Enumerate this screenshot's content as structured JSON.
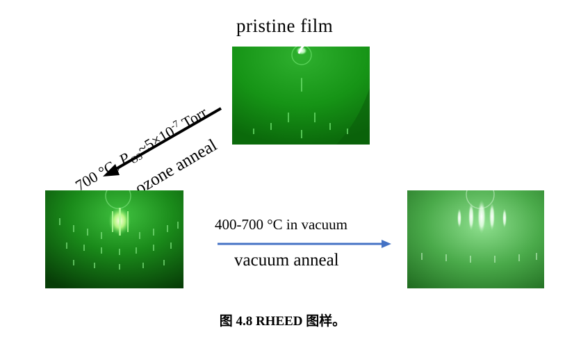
{
  "figure": {
    "pristine_label": "pristine film",
    "ozone_condition": {
      "prefix": "700 °C, ",
      "p": "P",
      "sub": "O3",
      "mid": "~5×10",
      "sup": "-7",
      "suffix": " Torr"
    },
    "ozone_anneal_label": "ozone anneal",
    "vacuum_condition": "400-700 °C in vacuum",
    "vacuum_anneal_label": "vacuum anneal"
  },
  "caption": {
    "prefix": "图 ",
    "number": "4.8",
    "acronym": " RHEED",
    "suffix": " 图样。"
  },
  "colors": {
    "ozone_arrow": "#000000",
    "vacuum_arrow": "#4472C4",
    "rheed_green": "#1a8f1a"
  }
}
